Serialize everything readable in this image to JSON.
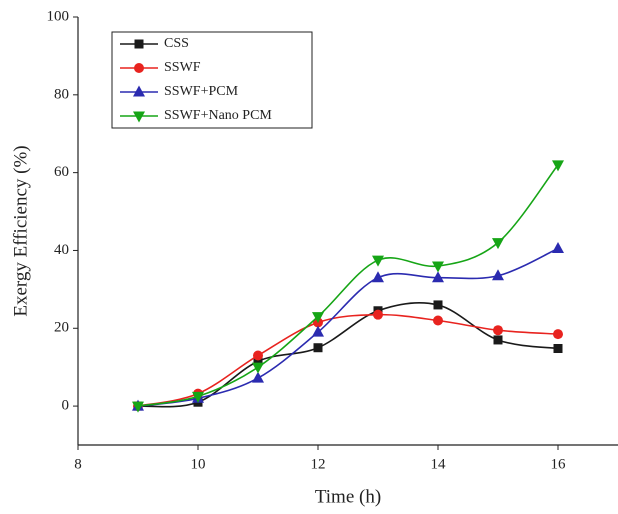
{
  "chart_data": {
    "type": "line",
    "x_label": "Time (h)",
    "y_label": "Exergy Efficiency (%)",
    "x": [
      9,
      10,
      11,
      12,
      13,
      14,
      15,
      16
    ],
    "series": [
      {
        "name": "CSS",
        "color": "#1a1a1a",
        "marker": "square",
        "values": [
          0,
          1,
          11.5,
          15,
          24.5,
          26,
          17,
          14.8
        ]
      },
      {
        "name": "SSWF",
        "color": "#e8231f",
        "marker": "circle",
        "values": [
          0,
          3.2,
          13,
          21.5,
          23.5,
          22,
          19.5,
          18.5
        ]
      },
      {
        "name": "SSWF+PCM",
        "color": "#2b2bb0",
        "marker": "triangle-up",
        "values": [
          0,
          2,
          7.2,
          19,
          33,
          33,
          33.5,
          40.5
        ]
      },
      {
        "name": "SSWF+Nano PCM",
        "color": "#16a516",
        "marker": "triangle-down",
        "values": [
          0,
          2.5,
          10,
          23,
          37.5,
          36,
          42,
          62
        ]
      }
    ],
    "xlim": [
      8,
      17
    ],
    "xticks": [
      8,
      10,
      12,
      14,
      16
    ],
    "ylim": [
      -10,
      100
    ],
    "yticks": [
      0,
      20,
      40,
      60,
      80,
      100
    ],
    "legend": "upper-left"
  }
}
